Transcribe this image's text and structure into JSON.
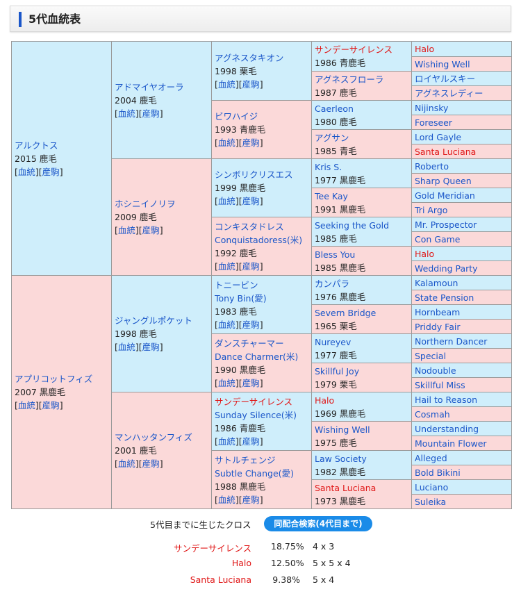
{
  "header": {
    "title": "5代血統表"
  },
  "labels": {
    "ketto": "血統",
    "sanku": "産駒"
  },
  "pedigree": {
    "g1": [
      {
        "name": "アルクトス",
        "info": "2015 鹿毛"
      },
      {
        "name": "アプリコットフィズ",
        "info": "2007 黒鹿毛"
      }
    ],
    "g2": [
      {
        "name": "アドマイヤオーラ",
        "info": "2004 鹿毛"
      },
      {
        "name": "ホシニイノリヲ",
        "info": "2009 鹿毛"
      },
      {
        "name": "ジャングルポケット",
        "info": "1998 鹿毛"
      },
      {
        "name": "マンハッタンフィズ",
        "info": "2001 鹿毛"
      }
    ],
    "g3": [
      {
        "name": "アグネスタキオン",
        "alt": "",
        "info": "1998 栗毛"
      },
      {
        "name": "ビワハイジ",
        "alt": "",
        "info": "1993 青鹿毛"
      },
      {
        "name": "シンボリクリスエス",
        "alt": "",
        "info": "1999 黒鹿毛"
      },
      {
        "name": "コンキスタドレス",
        "alt": "Conquistadoress(米)",
        "info": "1992 鹿毛"
      },
      {
        "name": "トニービン",
        "alt": "Tony Bin(愛)",
        "info": "1983 鹿毛"
      },
      {
        "name": "ダンスチャーマー",
        "alt": "Dance Charmer(米)",
        "info": "1990 黒鹿毛"
      },
      {
        "name": "サンデーサイレンス",
        "alt": "Sunday Silence(米)",
        "info": "1986 青鹿毛"
      },
      {
        "name": "サトルチェンジ",
        "alt": "Subtle Change(愛)",
        "info": "1988 黒鹿毛"
      }
    ],
    "g4": [
      {
        "name": "サンデーサイレンス",
        "info": "1986 青鹿毛"
      },
      {
        "name": "アグネスフローラ",
        "info": "1987 鹿毛"
      },
      {
        "name": "Caerleon",
        "info": "1980 鹿毛"
      },
      {
        "name": "アグサン",
        "info": "1985 青毛"
      },
      {
        "name": "Kris S.",
        "info": "1977 黒鹿毛"
      },
      {
        "name": "Tee Kay",
        "info": "1991 黒鹿毛"
      },
      {
        "name": "Seeking the Gold",
        "info": "1985 鹿毛"
      },
      {
        "name": "Bless You",
        "info": "1985 黒鹿毛"
      },
      {
        "name": "カンパラ",
        "info": "1976 黒鹿毛"
      },
      {
        "name": "Severn Bridge",
        "info": "1965 栗毛"
      },
      {
        "name": "Nureyev",
        "info": "1977 鹿毛"
      },
      {
        "name": "Skillful Joy",
        "info": "1979 栗毛"
      },
      {
        "name": "Halo",
        "info": "1969 黒鹿毛"
      },
      {
        "name": "Wishing Well",
        "info": "1975 鹿毛"
      },
      {
        "name": "Law Society",
        "info": "1982 黒鹿毛"
      },
      {
        "name": "Santa Luciana",
        "info": "1973 黒鹿毛"
      }
    ],
    "g5": [
      "Halo",
      "Wishing Well",
      "ロイヤルスキー",
      "アグネスレディー",
      "Nijinsky",
      "Foreseer",
      "Lord Gayle",
      "Santa Luciana",
      "Roberto",
      "Sharp Queen",
      "Gold Meridian",
      "Tri Argo",
      "Mr. Prospector",
      "Con Game",
      "Halo",
      "Wedding Party",
      "Kalamoun",
      "State Pension",
      "Hornbeam",
      "Priddy Fair",
      "Northern Dancer",
      "Special",
      "Nodouble",
      "Skillful Miss",
      "Hail to Reason",
      "Cosmah",
      "Understanding",
      "Mountain Flower",
      "Alleged",
      "Bold Bikini",
      "Luciano",
      "Suleika"
    ]
  },
  "cross": {
    "label": "5代目までに生じたクロス",
    "button": "同配合検索(4代目まで)",
    "items": [
      {
        "name": "サンデーサイレンス",
        "pct": "18.75%",
        "pattern": "4 x 3"
      },
      {
        "name": "Halo",
        "pct": "12.50%",
        "pattern": "5 x 5 x 4"
      },
      {
        "name": "Santa Luciana",
        "pct": "9.38%",
        "pattern": "5 x 4"
      }
    ]
  }
}
